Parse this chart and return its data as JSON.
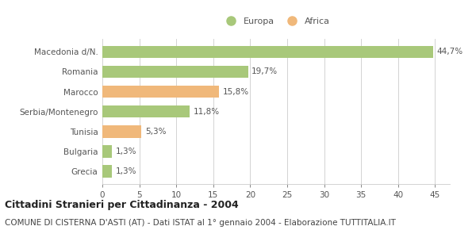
{
  "categories": [
    "Macedonia d/N.",
    "Romania",
    "Marocco",
    "Serbia/Montenegro",
    "Tunisia",
    "Bulgaria",
    "Grecia"
  ],
  "values": [
    44.7,
    19.7,
    15.8,
    11.8,
    5.3,
    1.3,
    1.3
  ],
  "labels": [
    "44,7%",
    "19,7%",
    "15,8%",
    "11,8%",
    "5,3%",
    "1,3%",
    "1,3%"
  ],
  "colors": [
    "#a8c87a",
    "#a8c87a",
    "#f0b87a",
    "#a8c87a",
    "#f0b87a",
    "#a8c87a",
    "#a8c87a"
  ],
  "legend_europa_color": "#a8c87a",
  "legend_africa_color": "#f0b87a",
  "xlim": [
    0,
    47
  ],
  "xticks": [
    0,
    5,
    10,
    15,
    20,
    25,
    30,
    35,
    40,
    45
  ],
  "title": "Cittadini Stranieri per Cittadinanza - 2004",
  "subtitle": "COMUNE DI CISTERNA D'ASTI (AT) - Dati ISTAT al 1° gennaio 2004 - Elaborazione TUTTITALIA.IT",
  "title_fontsize": 9,
  "subtitle_fontsize": 7.5,
  "label_fontsize": 7.5,
  "tick_fontsize": 7.5,
  "bar_height": 0.62,
  "background_color": "#ffffff"
}
